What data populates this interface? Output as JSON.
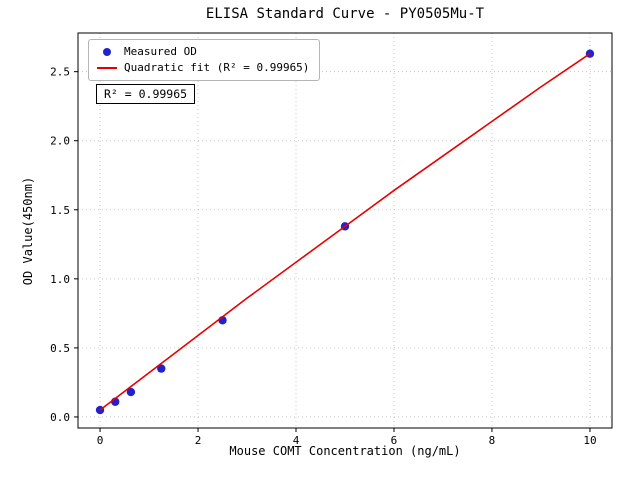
{
  "chart_data": {
    "type": "scatter",
    "title": "ELISA Standard Curve - PY0505Mu-T",
    "xlabel": "Mouse COMT Concentration (ng/mL)",
    "ylabel": "OD Value(450nm)",
    "xlim": [
      -0.45,
      10.45
    ],
    "ylim": [
      -0.08,
      2.78
    ],
    "xticks": [
      0,
      2,
      4,
      6,
      8,
      10
    ],
    "xtick_labels": [
      "0",
      "2",
      "4",
      "6",
      "8",
      "10"
    ],
    "yticks": [
      0,
      0.5,
      1,
      1.5,
      2,
      2.5
    ],
    "ytick_labels": [
      "0.0",
      "0.5",
      "1.0",
      "1.5",
      "2.0",
      "2.5"
    ],
    "grid": true,
    "legend_position": "upper-left",
    "annotation": "R² = 0.99965",
    "colors": {
      "scatter": "#2222cc",
      "fit_line": "#e80000",
      "grid": "#bbbbbb",
      "axis": "#000000",
      "background": "#ffffff"
    },
    "series": [
      {
        "name": "Measured OD",
        "type": "scatter",
        "color": "#2222cc",
        "points": [
          [
            0,
            0.05
          ],
          [
            0.31,
            0.11
          ],
          [
            0.63,
            0.18
          ],
          [
            1.25,
            0.35
          ],
          [
            2.5,
            0.7
          ],
          [
            5,
            1.38
          ],
          [
            10,
            2.63
          ]
        ]
      },
      {
        "name": "Quadratic fit (R² = 0.99965)",
        "type": "line",
        "color": "#e80000",
        "points": [
          [
            0,
            0.05
          ],
          [
            1,
            0.32
          ],
          [
            2,
            0.59
          ],
          [
            3,
            0.86
          ],
          [
            4,
            1.12
          ],
          [
            5,
            1.38
          ],
          [
            6,
            1.64
          ],
          [
            7,
            1.89
          ],
          [
            8,
            2.14
          ],
          [
            9,
            2.39
          ],
          [
            10,
            2.63
          ]
        ]
      }
    ]
  }
}
